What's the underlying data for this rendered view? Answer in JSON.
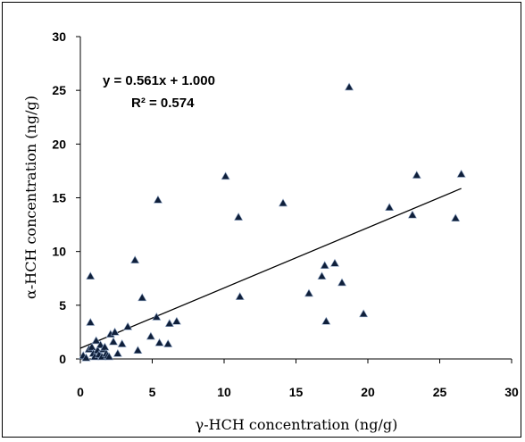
{
  "chart_data": {
    "type": "scatter",
    "xlabel": "γ-HCH concentration (ng/g)",
    "ylabel": "α-HCH concentration (ng/g)",
    "xlim": [
      0,
      30
    ],
    "ylim": [
      0,
      30
    ],
    "xticks": [
      0,
      5,
      10,
      15,
      20,
      25,
      30
    ],
    "yticks": [
      0,
      5,
      10,
      15,
      20,
      25,
      30
    ],
    "grid": false,
    "marker": "triangle",
    "marker_color": "#0f1f3a",
    "annotations": {
      "equation": "y = 0.561x + 1.000",
      "r2": "R² = 0.574"
    },
    "trendline": {
      "slope": 0.561,
      "intercept": 1.0,
      "x_range": [
        0,
        26.5
      ]
    },
    "points": [
      [
        0.2,
        0.3
      ],
      [
        0.4,
        0.1
      ],
      [
        0.6,
        0.9
      ],
      [
        0.7,
        3.4
      ],
      [
        0.7,
        7.7
      ],
      [
        0.8,
        1.1
      ],
      [
        0.9,
        0.5
      ],
      [
        1.0,
        0.2
      ],
      [
        1.1,
        1.7
      ],
      [
        1.2,
        0.8
      ],
      [
        1.3,
        0.4
      ],
      [
        1.4,
        1.3
      ],
      [
        1.5,
        0.2
      ],
      [
        1.6,
        0.9
      ],
      [
        1.7,
        1.1
      ],
      [
        1.8,
        0.5
      ],
      [
        1.9,
        0.3
      ],
      [
        2.0,
        0.2
      ],
      [
        2.1,
        2.3
      ],
      [
        2.3,
        1.6
      ],
      [
        2.4,
        2.5
      ],
      [
        2.6,
        0.5
      ],
      [
        2.9,
        1.4
      ],
      [
        3.3,
        3.0
      ],
      [
        3.8,
        9.2
      ],
      [
        4.0,
        0.8
      ],
      [
        4.3,
        5.7
      ],
      [
        4.9,
        2.1
      ],
      [
        5.3,
        3.9
      ],
      [
        5.4,
        14.8
      ],
      [
        5.5,
        1.5
      ],
      [
        6.1,
        1.4
      ],
      [
        6.2,
        3.3
      ],
      [
        6.7,
        3.5
      ],
      [
        10.1,
        17.0
      ],
      [
        11.0,
        13.2
      ],
      [
        11.1,
        5.8
      ],
      [
        14.1,
        14.5
      ],
      [
        15.9,
        6.1
      ],
      [
        16.8,
        7.7
      ],
      [
        17.0,
        8.7
      ],
      [
        17.1,
        3.5
      ],
      [
        17.7,
        8.9
      ],
      [
        18.2,
        7.1
      ],
      [
        18.7,
        25.3
      ],
      [
        19.7,
        4.2
      ],
      [
        21.5,
        14.1
      ],
      [
        23.1,
        13.4
      ],
      [
        23.4,
        17.1
      ],
      [
        26.1,
        13.1
      ],
      [
        26.5,
        17.2
      ]
    ]
  }
}
